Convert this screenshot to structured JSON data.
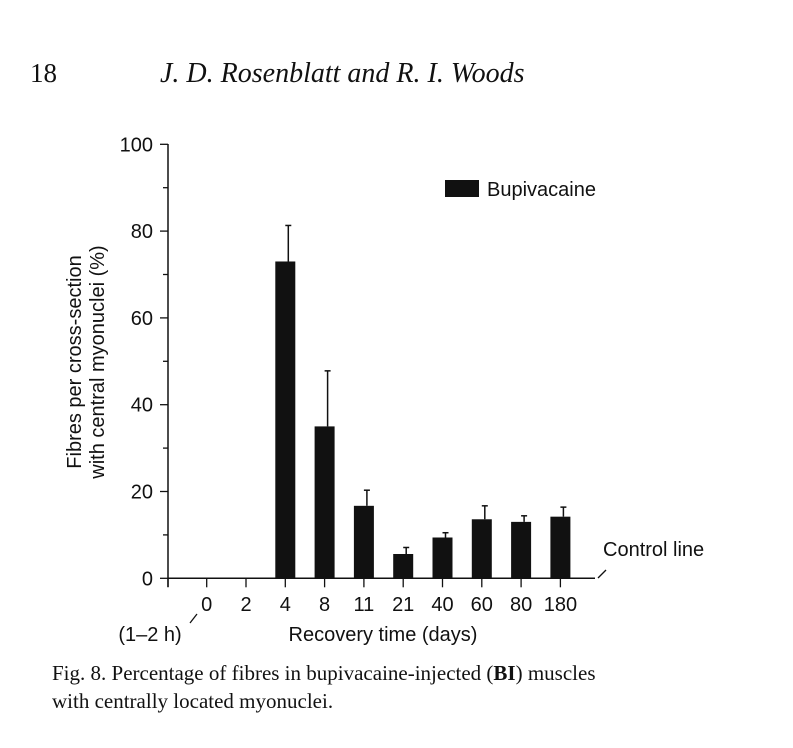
{
  "header": {
    "page_number": "18",
    "authors": "J. D. Rosenblatt and R. I. Woods"
  },
  "caption": {
    "line1_a": "Fig. 8. Percentage of fibres in bupivacaine-injected (",
    "line1_bold": "BI",
    "line1_b": ") muscles",
    "line2": "with centrally located myonuclei."
  },
  "chart_data": {
    "type": "bar",
    "title": "",
    "xlabel": "Recovery time (days)",
    "ylabel_line1": "Fibres per cross-section",
    "ylabel_line2": "with central myonuclei (%)",
    "ylim": [
      0,
      100
    ],
    "yticks": [
      "0",
      "20",
      "40",
      "60",
      "80",
      "100"
    ],
    "categories": [
      "0",
      "2",
      "4",
      "8",
      "11",
      "21",
      "40",
      "60",
      "80",
      "180"
    ],
    "x_annotation": "(1–2 h)",
    "legend": {
      "label": "Bupivacaine",
      "position": "top-right"
    },
    "control_line_label": "Control line",
    "series": [
      {
        "name": "Bupivacaine",
        "values": [
          0,
          0,
          73,
          35,
          16.7,
          5.6,
          9.4,
          13.6,
          13.0,
          14.2
        ],
        "error_upper": [
          0,
          0,
          81.3,
          47.8,
          20.3,
          7.1,
          10.5,
          16.7,
          14.4,
          16.4
        ]
      }
    ],
    "grid": false
  }
}
